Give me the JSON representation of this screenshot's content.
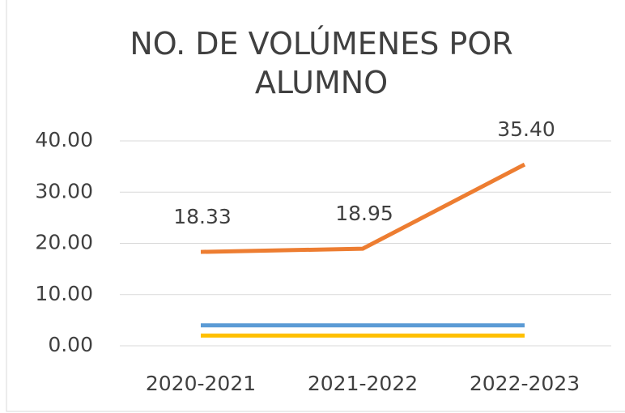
{
  "chart_data": {
    "type": "line",
    "title": "NO. DE VOLÚMENES POR ALUMNO",
    "categories": [
      "2020-2021",
      "2021-2022",
      "2022-2023"
    ],
    "series": [
      {
        "color": "#ed7d31",
        "values": [
          18.33,
          18.95,
          35.4
        ],
        "value_labels": [
          "18.33",
          "18.95",
          "35.40"
        ]
      },
      {
        "color": "#5b9bd5",
        "values": [
          4,
          4,
          4
        ]
      },
      {
        "color": "#ffc000",
        "values": [
          2,
          2,
          2
        ]
      }
    ],
    "ylim": [
      0,
      40
    ],
    "yticks": [
      {
        "value": 0,
        "label": "0.00"
      },
      {
        "value": 10,
        "label": "10.00"
      },
      {
        "value": 20,
        "label": "20.00"
      },
      {
        "value": 30,
        "label": "30.00"
      },
      {
        "value": 40,
        "label": "40.00"
      }
    ],
    "grid": true
  }
}
